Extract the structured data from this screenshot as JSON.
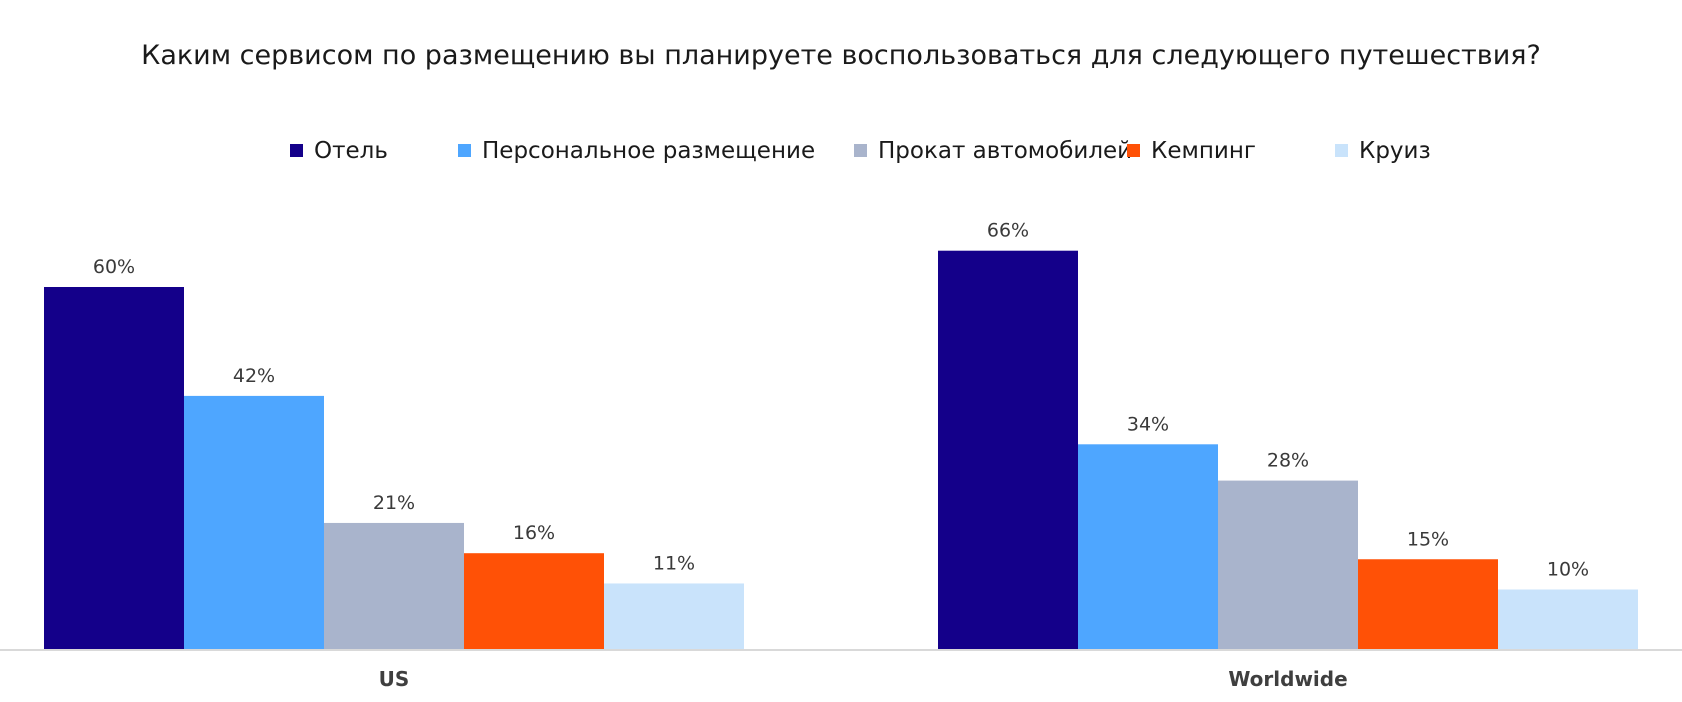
{
  "chart_data": {
    "type": "bar",
    "title": "Каким сервисом по размещению вы планируете воспользоваться для следующего путешествия?",
    "categories": [
      "US",
      "Worldwide"
    ],
    "series": [
      {
        "name": "Отель",
        "color": "#14008A",
        "values": [
          60,
          66
        ],
        "labels": [
          "60%",
          "66%"
        ]
      },
      {
        "name": "Персональное размещение",
        "color": "#4EA6FF",
        "values": [
          42,
          34
        ],
        "labels": [
          "42%",
          "34%"
        ]
      },
      {
        "name": "Прокат автомобилей",
        "color": "#A9B4CC",
        "values": [
          21,
          28
        ],
        "labels": [
          "21%",
          "28%"
        ]
      },
      {
        "name": "Кемпинг",
        "color": "#FF5106",
        "values": [
          16,
          15
        ],
        "labels": [
          "16%",
          "15%"
        ]
      },
      {
        "name": "Круиз",
        "color": "#C9E3FB",
        "values": [
          11,
          10
        ],
        "labels": [
          "11%",
          "10%"
        ]
      }
    ],
    "ylim": [
      0,
      70
    ],
    "grid": false,
    "legend_position": "top",
    "xlabel": "",
    "ylabel": ""
  }
}
